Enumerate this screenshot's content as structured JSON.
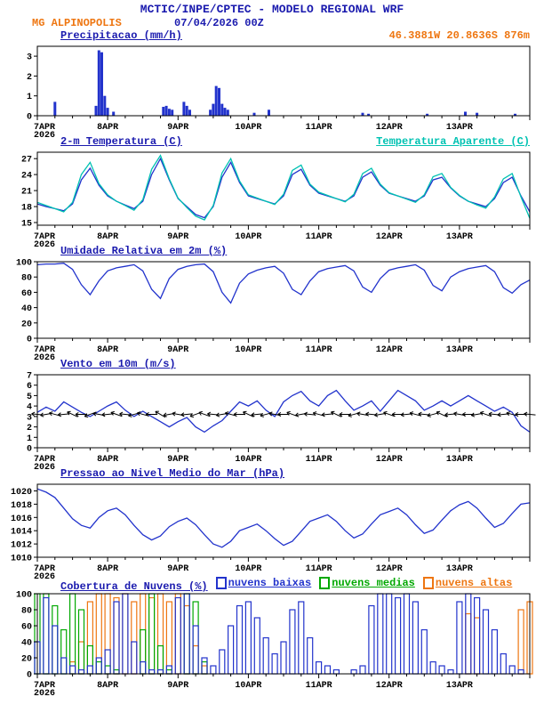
{
  "header": {
    "title": "MCTIC/INPE/CPTEC - MODELO REGIONAL WRF",
    "station": "MG ALPINOPOLIS",
    "run": "07/04/2026 00Z",
    "coords": "46.3881W 20.8636S 876m"
  },
  "colors": {
    "navy": "#1a1aae",
    "blue": "#2233cc",
    "cyan": "#00c2b2",
    "orange": "#ee7611",
    "green": "#00a800",
    "black": "#000000"
  },
  "x_axis": {
    "labels": [
      "7APR",
      "8APR",
      "9APR",
      "10APR",
      "11APR",
      "12APR",
      "13APR"
    ],
    "label_hours": [
      0,
      24,
      48,
      72,
      96,
      120,
      144
    ],
    "year": "2026",
    "hours_total": 168,
    "minor_step_h": 6
  },
  "chart_data": [
    {
      "id": "precipitation",
      "type": "bar",
      "title": "Precipitacao (mm/h)",
      "ylim": [
        0,
        3.5
      ],
      "yticks": [
        0,
        1,
        2,
        3
      ],
      "color": "#2233cc",
      "bars": [
        [
          6,
          0.7
        ],
        [
          20,
          0.5
        ],
        [
          21,
          3.3
        ],
        [
          22,
          3.2
        ],
        [
          23,
          1.0
        ],
        [
          24,
          0.4
        ],
        [
          26,
          0.2
        ],
        [
          43,
          0.45
        ],
        [
          44,
          0.5
        ],
        [
          45,
          0.35
        ],
        [
          46,
          0.3
        ],
        [
          50,
          0.7
        ],
        [
          51,
          0.5
        ],
        [
          52,
          0.3
        ],
        [
          59,
          0.3
        ],
        [
          60,
          0.6
        ],
        [
          61,
          1.5
        ],
        [
          62,
          1.4
        ],
        [
          63,
          0.6
        ],
        [
          64,
          0.4
        ],
        [
          65,
          0.3
        ],
        [
          74,
          0.15
        ],
        [
          79,
          0.3
        ],
        [
          111,
          0.15
        ],
        [
          113,
          0.1
        ],
        [
          133,
          0.1
        ],
        [
          146,
          0.2
        ],
        [
          150,
          0.15
        ],
        [
          163,
          0.1
        ]
      ]
    },
    {
      "id": "temperature",
      "type": "line",
      "title": "2-m Temperatura (C)",
      "legend_right": "Temperatura Aparente (C)",
      "ylim": [
        14.5,
        28.2
      ],
      "yticks": [
        15,
        18,
        21,
        24,
        27
      ],
      "step_h": 3,
      "series": [
        {
          "name": "2-m Temperatura",
          "color": "#2233cc",
          "values": [
            18.5,
            18.0,
            17.6,
            17.2,
            18.5,
            23.0,
            25.2,
            22.0,
            20.0,
            19.0,
            18.3,
            17.6,
            19.0,
            24.0,
            27.0,
            23.0,
            19.5,
            18.0,
            16.5,
            15.9,
            18.0,
            23.5,
            26.3,
            22.5,
            20.0,
            19.5,
            19.0,
            18.5,
            20.0,
            24.0,
            25.0,
            22.0,
            20.5,
            20.0,
            19.5,
            19.0,
            20.0,
            23.5,
            24.5,
            22.0,
            20.5,
            20.0,
            19.5,
            19.0,
            20.0,
            23.0,
            23.5,
            21.5,
            20.0,
            19.0,
            18.5,
            18.0,
            19.5,
            22.5,
            23.5,
            20.0,
            17.0
          ]
        },
        {
          "name": "Temperatura Aparente",
          "color": "#00c2b2",
          "values": [
            18.8,
            18.2,
            17.6,
            17.0,
            18.8,
            24.0,
            26.3,
            22.3,
            20.2,
            19.0,
            18.2,
            17.3,
            19.3,
            25.0,
            27.6,
            23.2,
            19.6,
            17.8,
            16.2,
            15.5,
            18.2,
            24.3,
            27.0,
            22.8,
            20.2,
            19.6,
            19.0,
            18.4,
            20.3,
            24.8,
            25.8,
            22.2,
            20.7,
            20.1,
            19.5,
            18.9,
            20.3,
            24.2,
            25.2,
            22.2,
            20.6,
            20.0,
            19.4,
            18.8,
            20.2,
            23.6,
            24.2,
            21.6,
            20.1,
            19.0,
            18.3,
            17.7,
            19.8,
            23.2,
            24.2,
            19.8,
            15.8
          ]
        }
      ]
    },
    {
      "id": "humidity",
      "type": "line",
      "title": "Umidade Relativa em 2m (%)",
      "ylim": [
        0,
        100
      ],
      "yticks": [
        0,
        20,
        40,
        60,
        80,
        100
      ],
      "step_h": 3,
      "series": [
        {
          "name": "Umidade Relativa",
          "color": "#2233cc",
          "values": [
            96,
            97,
            97,
            98,
            90,
            70,
            57,
            75,
            88,
            92,
            94,
            96,
            88,
            64,
            52,
            78,
            90,
            94,
            96,
            97,
            87,
            60,
            46,
            72,
            84,
            89,
            92,
            94,
            85,
            64,
            57,
            75,
            87,
            91,
            93,
            95,
            88,
            67,
            60,
            78,
            89,
            92,
            94,
            96,
            89,
            69,
            62,
            80,
            87,
            91,
            93,
            95,
            87,
            66,
            59,
            70,
            76
          ]
        }
      ]
    },
    {
      "id": "wind",
      "type": "line",
      "title": "Vento em 10m (m/s)",
      "ylim": [
        0,
        7
      ],
      "yticks": [
        0,
        1,
        2,
        3,
        4,
        5,
        6,
        7
      ],
      "step_h": 3,
      "series": [
        {
          "name": "Vento 10m",
          "color": "#2233cc",
          "values": [
            3.4,
            3.9,
            3.5,
            4.4,
            3.9,
            3.4,
            3.0,
            3.5,
            4.0,
            4.4,
            3.6,
            3.0,
            3.5,
            3.0,
            2.5,
            2.0,
            2.5,
            2.9,
            2.0,
            1.5,
            2.1,
            2.6,
            3.5,
            4.4,
            4.0,
            4.5,
            3.6,
            3.0,
            4.4,
            5.0,
            5.4,
            4.5,
            4.0,
            5.0,
            5.5,
            4.5,
            3.6,
            4.0,
            4.5,
            3.5,
            4.5,
            5.5,
            5.0,
            4.5,
            3.6,
            4.0,
            4.5,
            4.0,
            4.5,
            5.0,
            4.5,
            4.0,
            3.5,
            3.9,
            3.4,
            2.1,
            1.5
          ]
        }
      ],
      "barbs": {
        "y": 3.2,
        "step_h": 3,
        "color": "#000000",
        "angles": [
          185,
          170,
          195,
          175,
          205,
          180,
          160,
          190,
          175,
          200,
          185,
          165,
          195,
          180,
          210,
          170,
          190,
          175,
          160,
          200,
          185,
          170,
          195,
          180,
          205,
          175,
          165,
          190,
          180,
          200,
          170,
          185,
          195,
          175,
          205,
          180,
          165,
          190,
          185,
          170,
          200,
          180,
          175,
          195,
          185,
          165,
          205,
          175,
          190,
          180,
          170,
          200,
          185,
          175,
          195,
          180,
          185
        ]
      }
    },
    {
      "id": "pressure",
      "type": "line",
      "title": "Pressao ao Nivel Medio do Mar (hPa)",
      "ylim": [
        1010,
        1021
      ],
      "yticks": [
        1010,
        1012,
        1014,
        1016,
        1018,
        1020
      ],
      "step_h": 3,
      "series": [
        {
          "name": "Pressao nivel do mar",
          "color": "#2233cc",
          "values": [
            1020.3,
            1019.8,
            1019.0,
            1017.4,
            1015.8,
            1014.8,
            1014.4,
            1016.0,
            1017.0,
            1017.4,
            1016.4,
            1014.8,
            1013.4,
            1012.6,
            1013.2,
            1014.6,
            1015.4,
            1015.9,
            1014.9,
            1013.4,
            1012.0,
            1011.5,
            1012.4,
            1014.0,
            1014.5,
            1015.0,
            1014.0,
            1012.8,
            1011.8,
            1012.4,
            1013.9,
            1015.4,
            1015.9,
            1016.4,
            1015.4,
            1014.0,
            1012.9,
            1013.5,
            1015.0,
            1016.4,
            1016.9,
            1017.4,
            1016.4,
            1014.9,
            1013.6,
            1014.1,
            1015.6,
            1017.0,
            1017.9,
            1018.4,
            1017.4,
            1015.9,
            1014.5,
            1015.1,
            1016.6,
            1018.0,
            1018.2
          ]
        }
      ]
    },
    {
      "id": "clouds",
      "type": "bar-multi",
      "title": "Cobertura de Nuvens (%)",
      "ylim": [
        0,
        100
      ],
      "yticks": [
        0,
        20,
        40,
        60,
        80,
        100
      ],
      "step_h": 3,
      "series": [
        {
          "label": "nuvens baixas",
          "color": "#2233cc",
          "values": [
            40,
            95,
            60,
            20,
            10,
            5,
            10,
            20,
            30,
            90,
            100,
            40,
            15,
            5,
            5,
            10,
            95,
            100,
            60,
            20,
            10,
            30,
            60,
            85,
            90,
            70,
            45,
            25,
            40,
            80,
            90,
            45,
            15,
            10,
            5,
            0,
            5,
            10,
            85,
            100,
            100,
            95,
            100,
            90,
            55,
            15,
            10,
            5,
            90,
            100,
            95,
            80,
            55,
            25,
            10,
            5,
            0
          ]
        },
        {
          "label": "nuvens medias",
          "color": "#00a800",
          "values": [
            100,
            100,
            85,
            55,
            100,
            80,
            35,
            15,
            10,
            5,
            0,
            0,
            55,
            100,
            35,
            5,
            0,
            100,
            90,
            15,
            0,
            0,
            0,
            0,
            0,
            0,
            0,
            0,
            0,
            0,
            0,
            0,
            0,
            0,
            0,
            0,
            0,
            0,
            0,
            0,
            0,
            0,
            0,
            0,
            0,
            0,
            0,
            0,
            0,
            0,
            0,
            0,
            0,
            0,
            0,
            0,
            0
          ]
        },
        {
          "label": "nuvens altas",
          "color": "#ee7611",
          "values": [
            0,
            0,
            0,
            0,
            15,
            40,
            90,
            100,
            100,
            95,
            100,
            90,
            100,
            95,
            100,
            90,
            100,
            85,
            35,
            10,
            0,
            0,
            0,
            0,
            0,
            0,
            0,
            0,
            0,
            0,
            0,
            0,
            0,
            0,
            0,
            0,
            0,
            0,
            0,
            0,
            0,
            0,
            0,
            0,
            0,
            0,
            0,
            0,
            0,
            75,
            70,
            0,
            0,
            0,
            0,
            80,
            90
          ]
        }
      ]
    }
  ]
}
